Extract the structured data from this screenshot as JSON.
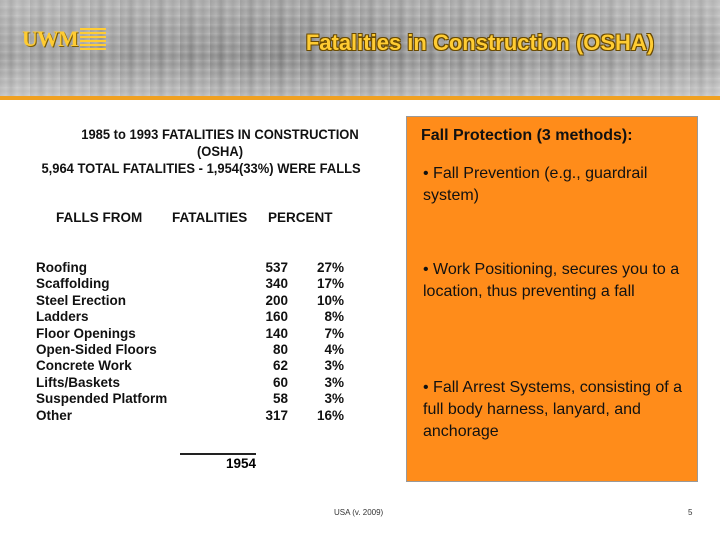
{
  "header": {
    "logo": "UWM",
    "title": "Fatalities in Construction (OSHA)"
  },
  "stats": {
    "heading": [
      "1985 to 1993 FATALITIES IN CONSTRUCTION",
      "(OSHA)",
      "5,964 TOTAL FATALITIES - 1,954(33%) WERE FALLS"
    ],
    "columns": [
      "FALLS FROM",
      "FATALITIES",
      "PERCENT"
    ],
    "rows": [
      {
        "category": "Roofing",
        "fatalities": "537",
        "percent": "27%"
      },
      {
        "category": "Scaffolding",
        "fatalities": "340",
        "percent": "17%"
      },
      {
        "category": "Steel Erection",
        "fatalities": "200",
        "percent": "10%"
      },
      {
        "category": "Ladders",
        "fatalities": "160",
        "percent": "8%"
      },
      {
        "category": "Floor Openings",
        "fatalities": "140",
        "percent": "7%"
      },
      {
        "category": "Open-Sided Floors",
        "fatalities": "80",
        "percent": "4%"
      },
      {
        "category": "Concrete Work",
        "fatalities": "62",
        "percent": "3%"
      },
      {
        "category": "Lifts/Baskets",
        "fatalities": "60",
        "percent": "3%"
      },
      {
        "category": "Suspended Platform",
        "fatalities": "58",
        "percent": "3%"
      },
      {
        "category": "Other",
        "fatalities": "317",
        "percent": "16%"
      }
    ],
    "total": "1954"
  },
  "panel": {
    "title": "Fall Protection (3 methods):",
    "bullets": [
      "• Fall Prevention (e.g., guardrail system)",
      "• Work Positioning, secures you to a location, thus preventing a fall",
      "• Fall Arrest Systems, consisting of a full body harness, lanyard, and anchorage"
    ]
  },
  "footer": {
    "source": "USA (v. 2009)",
    "page": "5"
  },
  "colors": {
    "accent": "#ffcc33",
    "panel": "#ff8c1a",
    "rule": "#f0a020"
  }
}
